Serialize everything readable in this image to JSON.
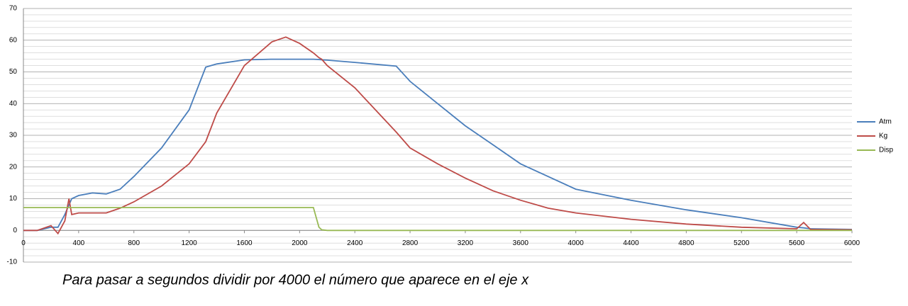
{
  "chart_data": {
    "type": "line",
    "x": [
      0,
      100,
      200,
      250,
      300,
      330,
      350,
      400,
      500,
      600,
      700,
      800,
      1000,
      1200,
      1320,
      1400,
      1600,
      1800,
      1900,
      2000,
      2100,
      2140,
      2160,
      2200,
      2400,
      2700,
      2800,
      3000,
      3200,
      3400,
      3600,
      3800,
      4000,
      4400,
      4800,
      5200,
      5600,
      5650,
      5700,
      6000
    ],
    "series": [
      {
        "name": "Atm",
        "color": "#4a7ebb",
        "values": [
          0,
          0,
          1,
          1,
          5,
          8,
          10,
          11,
          11.8,
          11.5,
          13,
          17,
          26,
          38,
          51.5,
          52.5,
          53.8,
          54,
          54,
          54,
          54,
          53.9,
          53.8,
          53.7,
          53,
          51.8,
          47,
          40,
          33,
          27,
          21,
          17,
          13,
          9.5,
          6.5,
          4,
          1,
          0.8,
          0.5,
          0.3
        ]
      },
      {
        "name": "Kg",
        "color": "#be4b48",
        "values": [
          0,
          0,
          1.5,
          -1,
          3,
          10,
          5,
          5.5,
          5.5,
          5.5,
          7,
          9,
          14,
          21,
          28,
          37,
          52,
          59.5,
          61,
          59,
          56,
          54.5,
          54,
          52,
          45,
          31,
          26,
          21,
          16.5,
          12.5,
          9.5,
          7,
          5.5,
          3.5,
          2,
          1,
          0.5,
          2.5,
          0.3,
          0.2
        ]
      },
      {
        "name": "Disp",
        "color": "#98b954",
        "values": [
          7.2,
          7.2,
          7.2,
          7.2,
          7.2,
          7.2,
          7.2,
          7.2,
          7.2,
          7.2,
          7.2,
          7.2,
          7.2,
          7.2,
          7.2,
          7.2,
          7.2,
          7.2,
          7.2,
          7.2,
          7.2,
          1,
          0.2,
          0,
          0,
          0,
          0,
          0,
          0,
          0,
          0,
          0,
          0,
          0,
          0,
          0,
          0,
          0,
          0,
          0
        ]
      }
    ],
    "xlim": [
      0,
      6000
    ],
    "xticks": [
      0,
      400,
      800,
      1200,
      1600,
      2000,
      2400,
      2800,
      3200,
      3600,
      4000,
      4400,
      4800,
      5200,
      5600,
      6000
    ],
    "ylim": [
      -10,
      70
    ],
    "yticks": [
      -10,
      0,
      10,
      20,
      30,
      40,
      50,
      60,
      70
    ],
    "grid": true,
    "annotation": "Para pasar a segundos dividir por 4000 el número que aparece en el eje x"
  }
}
